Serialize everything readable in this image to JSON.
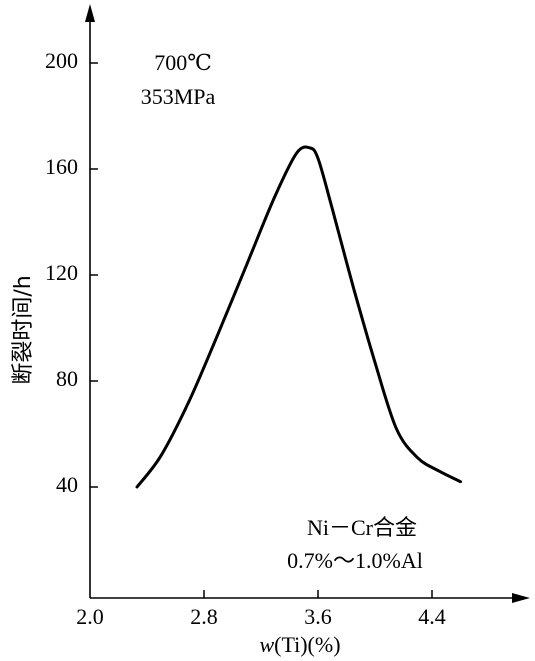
{
  "chart_data": {
    "type": "line",
    "xlabel_var": "w",
    "xlabel_rest": "(Ti)(%)",
    "ylabel": "断裂时间/h",
    "x_ticks": [
      "2.0",
      "2.8",
      "3.6",
      "4.4"
    ],
    "y_ticks": [
      "40",
      "80",
      "120",
      "160",
      "200"
    ],
    "xlim": [
      2.0,
      5.0
    ],
    "ylim": [
      0,
      230
    ],
    "grid": false,
    "annotations": {
      "conditions": [
        "700℃",
        "353MPa"
      ],
      "alloy": [
        "Ni－Cr合金",
        "0.7%～1.0%Al"
      ]
    },
    "series": [
      {
        "x": [
          2.33,
          2.5,
          2.7,
          2.9,
          3.1,
          3.3,
          3.45,
          3.54,
          3.6,
          3.7,
          3.85,
          4.0,
          4.15,
          4.3,
          4.45,
          4.6
        ],
        "y": [
          40,
          52,
          73,
          98,
          124,
          150,
          166,
          168,
          164,
          145,
          115,
          87,
          62,
          51,
          46,
          42
        ]
      }
    ]
  }
}
